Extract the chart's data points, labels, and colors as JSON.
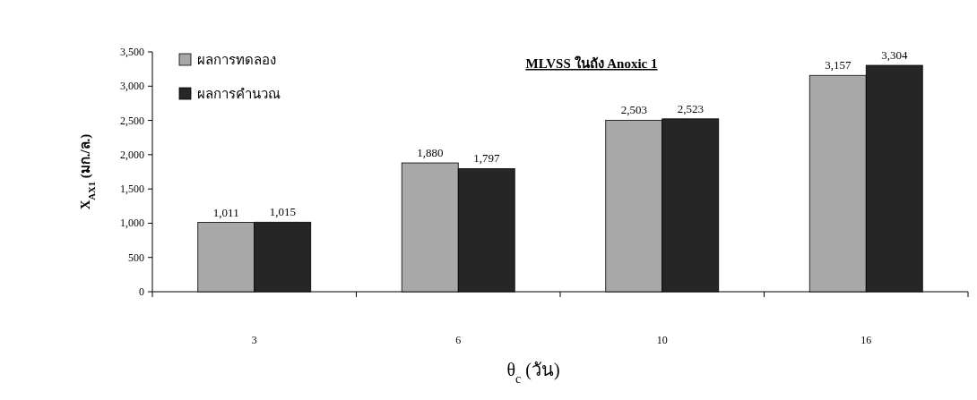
{
  "chart_data": {
    "type": "bar",
    "title": "MLVSS ในถัง Anoxic 1",
    "xlabel": "θ$_{c}$ (วัน)",
    "ylabel": "X$_{AX1}$ (มก./ล.)",
    "categories": [
      "3",
      "6",
      "10",
      "16"
    ],
    "series": [
      {
        "name": "ผลการทดลอง",
        "color": "#a8a8a8",
        "values": [
          1011,
          1880,
          2503,
          3157
        ],
        "value_labels": [
          "1,011",
          "1,880",
          "2,503",
          "3,157"
        ]
      },
      {
        "name": "ผลการคำนวณ",
        "color": "#262626",
        "values": [
          1015,
          1797,
          2523,
          3304
        ],
        "value_labels": [
          "1,015",
          "1,797",
          "2,523",
          "3,304"
        ]
      }
    ],
    "ylim": [
      0,
      3500
    ],
    "yticks": [
      {
        "value": 0,
        "label": "0"
      },
      {
        "value": 500,
        "label": "500"
      },
      {
        "value": 1000,
        "label": "1,000"
      },
      {
        "value": 1500,
        "label": "1,500"
      },
      {
        "value": 2000,
        "label": "2,000"
      },
      {
        "value": 2500,
        "label": "2,500"
      },
      {
        "value": 3000,
        "label": "3,000"
      },
      {
        "value": 3500,
        "label": "3,500"
      }
    ],
    "grid": false,
    "legend": "top left"
  }
}
